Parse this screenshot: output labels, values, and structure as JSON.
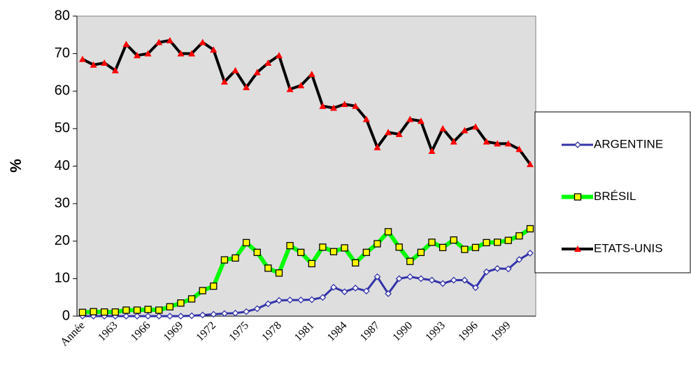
{
  "chart_data": {
    "type": "line",
    "ylabel": "%",
    "categories": [
      "Année",
      null,
      null,
      "1963",
      null,
      null,
      "1966",
      null,
      null,
      "1969",
      null,
      null,
      "1972",
      null,
      null,
      "1975",
      null,
      null,
      "1978",
      null,
      null,
      "1981",
      null,
      null,
      "1984",
      null,
      null,
      "1987",
      null,
      null,
      "1990",
      null,
      null,
      "1993",
      null,
      null,
      "1996",
      null,
      null,
      "1999",
      null,
      null
    ],
    "series": [
      {
        "name": "ARGENTINE",
        "color": "#3333aa",
        "marker": "diamond",
        "marker_fill": "#ffffff",
        "values": [
          0,
          0,
          0,
          0,
          0,
          0,
          0,
          0,
          0,
          0,
          0.1,
          0.3,
          0.5,
          0.7,
          0.8,
          1.2,
          2,
          3.3,
          4.2,
          4.3,
          4.3,
          4.4,
          5,
          7.7,
          6.5,
          7.5,
          6.7,
          10.5,
          6,
          10,
          10.5,
          10,
          9.6,
          8.7,
          9.6,
          9.6,
          7.6,
          11.8,
          12.7,
          12.6,
          15.1,
          16.8
        ]
      },
      {
        "name": "BRÉSIL",
        "color": "#00ff00",
        "marker": "square",
        "marker_fill": "#ffff00",
        "values": [
          1,
          1.2,
          1.1,
          1.1,
          1.6,
          1.6,
          1.8,
          1.6,
          2.5,
          3.5,
          4.6,
          6.8,
          8,
          15,
          15.5,
          19.6,
          17,
          12.8,
          11.5,
          18.8,
          17,
          14,
          18.4,
          17.2,
          18.2,
          14.2,
          17,
          19.3,
          22.5,
          18.4,
          14.6,
          17,
          19.7,
          18.3,
          20.3,
          17.8,
          18.3,
          19.6,
          19.7,
          20.2,
          21.4,
          23.3
        ]
      },
      {
        "name": "ETATS-UNIS",
        "color": "#000000",
        "marker": "triangle",
        "marker_fill": "#ff0000",
        "values": [
          68.5,
          67,
          67.5,
          65.5,
          72.5,
          69.5,
          70,
          73,
          73.5,
          70,
          70,
          73,
          71,
          62.5,
          65.5,
          61,
          65,
          67.5,
          69.5,
          60.5,
          61.5,
          64.5,
          56,
          55.5,
          56.5,
          56,
          52.5,
          45,
          49,
          48.5,
          52.5,
          52,
          44,
          50,
          46.5,
          49.5,
          50.5,
          46.5,
          46,
          46,
          44.5,
          40.5
        ]
      }
    ],
    "ylim": [
      0,
      80
    ],
    "yticks": [
      0,
      10,
      20,
      30,
      40,
      50,
      60,
      70,
      80
    ],
    "legend": "right",
    "plot_background": "#dedede"
  }
}
